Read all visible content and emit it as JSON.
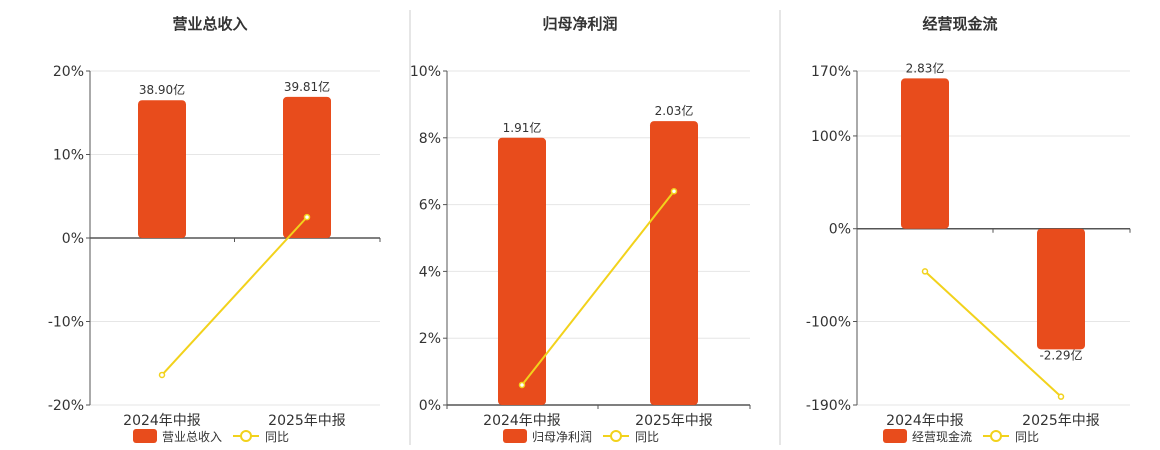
{
  "colors": {
    "bar": "#e84c1c",
    "line": "#f2d21c",
    "axis": "#555555",
    "grid": "#e6e6e6",
    "divider": "#cccccc",
    "text": "#333333"
  },
  "chart_data": [
    {
      "type": "bar",
      "title": "营业总收入",
      "categories": [
        "2024年中报",
        "2025年中报"
      ],
      "bar_labels": [
        "38.90亿",
        "39.81亿"
      ],
      "bar_values": [
        16.5,
        16.9
      ],
      "line_values": [
        -16.4,
        2.5
      ],
      "y_ticks": [
        "20%",
        "10%",
        "0%",
        "-10%",
        "-20%"
      ],
      "ylim": [
        -20,
        20
      ],
      "zero_value": 0,
      "legend": [
        "营业总收入",
        "同比"
      ],
      "legend_position": "bottom"
    },
    {
      "type": "bar",
      "title": "归母净利润",
      "categories": [
        "2024年中报",
        "2025年中报"
      ],
      "bar_labels": [
        "1.91亿",
        "2.03亿"
      ],
      "bar_values": [
        8.0,
        8.5
      ],
      "line_values": [
        0.6,
        6.4
      ],
      "y_ticks": [
        "10%",
        "8%",
        "6%",
        "4%",
        "2%",
        "0%"
      ],
      "ylim": [
        0,
        10
      ],
      "zero_value": 0,
      "legend": [
        "归母净利润",
        "同比"
      ],
      "legend_position": "bottom"
    },
    {
      "type": "bar",
      "title": "经营现金流",
      "categories": [
        "2024年中报",
        "2025年中报"
      ],
      "bar_labels": [
        "2.83亿",
        "-2.29亿"
      ],
      "bar_values": [
        162,
        -130
      ],
      "line_values": [
        -46,
        -181
      ],
      "y_ticks": [
        "170%",
        "100%",
        "0%",
        "-100%",
        "-190%"
      ],
      "y_tick_values": [
        170,
        100,
        0,
        -100,
        -190
      ],
      "ylim": [
        -190,
        170
      ],
      "zero_value": 0,
      "legend": [
        "经营现金流",
        "同比"
      ],
      "legend_position": "bottom"
    }
  ]
}
